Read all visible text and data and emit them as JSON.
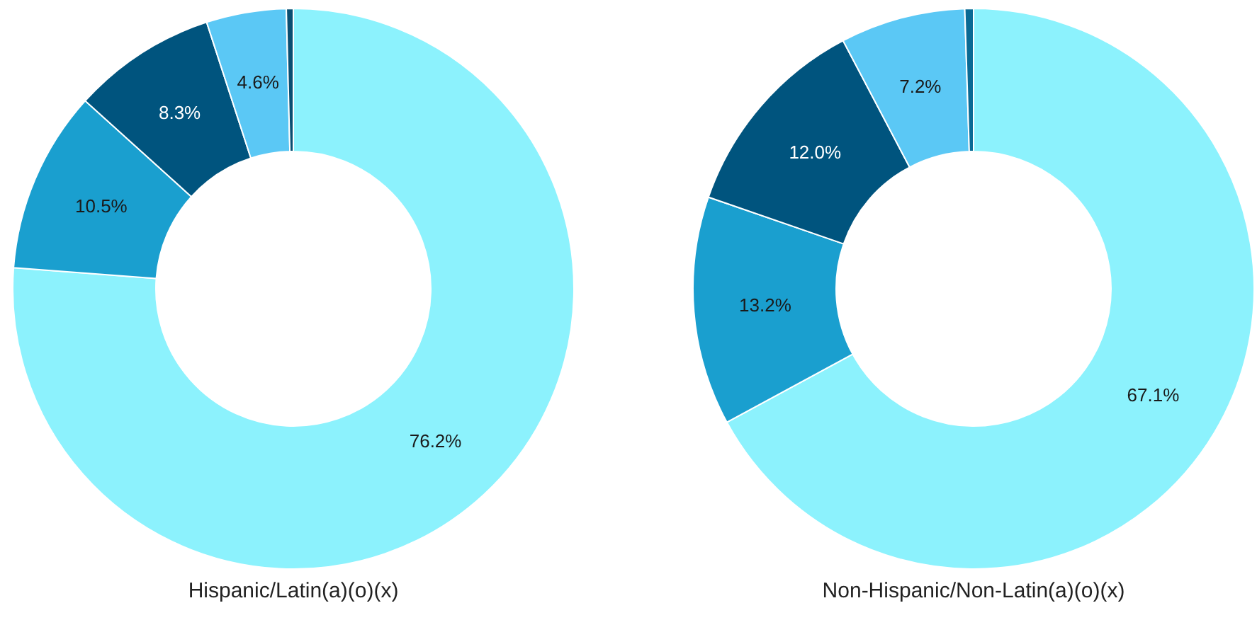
{
  "chart_data": [
    {
      "type": "donut",
      "title": "Hispanic/Latin(a)(o)(x)",
      "categories": [
        null,
        null,
        null,
        null,
        null
      ],
      "values": [
        76.2,
        10.5,
        8.3,
        4.6,
        0.4
      ],
      "colors": [
        "#8cf2fd",
        "#1a9fcf",
        "#00547e",
        "#5bc8f5",
        "#0a4f72"
      ],
      "value_labels": [
        "76.2%",
        "10.5%",
        "8.3%",
        "4.6%",
        null
      ],
      "legend": false
    },
    {
      "type": "donut",
      "title": "Non-Hispanic/Non-Latin(a)(o)(x)",
      "categories": [
        null,
        null,
        null,
        null,
        null
      ],
      "values": [
        67.1,
        13.2,
        12.0,
        7.2,
        0.5
      ],
      "colors": [
        "#8cf2fd",
        "#1a9fcf",
        "#00547e",
        "#5bc8f5",
        "#0a6a94"
      ],
      "value_labels": [
        "67.1%",
        "13.2%",
        "12.0%",
        "7.2%",
        null
      ],
      "legend": false
    }
  ]
}
